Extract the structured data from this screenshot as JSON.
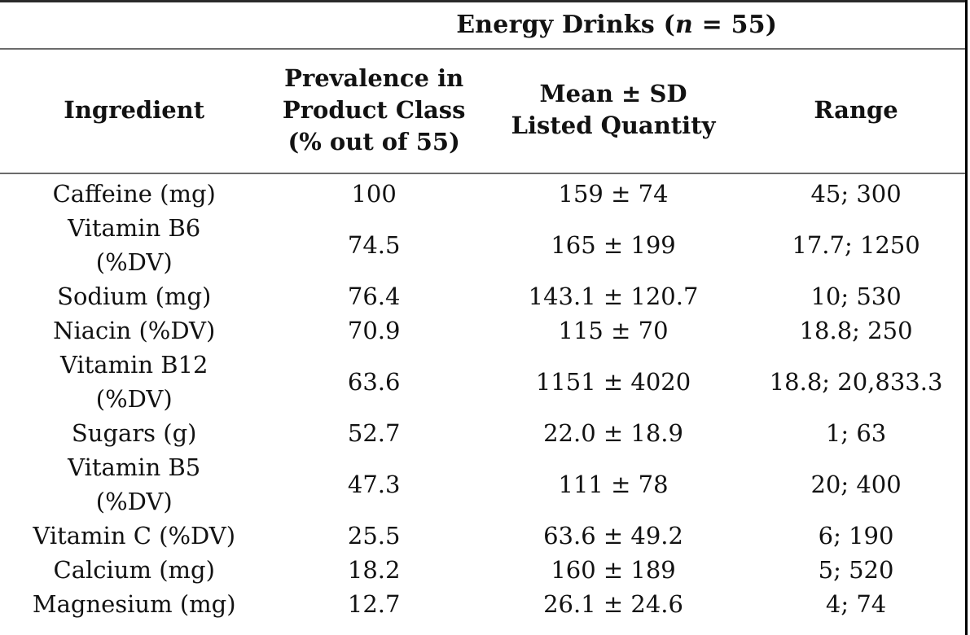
{
  "table": {
    "group_header": {
      "prefix": "Energy Drinks (",
      "n": "n",
      "suffix": " = 55)"
    },
    "columns": {
      "ingredient": "Ingredient",
      "prevalence": "Prevalence in\nProduct Class\n(% out of 55)",
      "mean_sd": "Mean ± SD\nListed Quantity",
      "range": "Range"
    },
    "rows": [
      {
        "ingredient": "Caffeine (mg)",
        "prevalence": "100",
        "mean_sd": "159 ± 74",
        "range": "45; 300"
      },
      {
        "ingredient": "Vitamin B6\n(%DV)",
        "prevalence": "74.5",
        "mean_sd": "165 ± 199",
        "range": "17.7; 1250"
      },
      {
        "ingredient": "Sodium (mg)",
        "prevalence": "76.4",
        "mean_sd": "143.1 ± 120.7",
        "range": "10; 530"
      },
      {
        "ingredient": "Niacin (%DV)",
        "prevalence": "70.9",
        "mean_sd": "115 ± 70",
        "range": "18.8; 250"
      },
      {
        "ingredient": "Vitamin B12\n(%DV)",
        "prevalence": "63.6",
        "mean_sd": "1151 ± 4020",
        "range": "18.8; 20,833.3"
      },
      {
        "ingredient": "Sugars (g)",
        "prevalence": "52.7",
        "mean_sd": "22.0 ± 18.9",
        "range": "1; 63"
      },
      {
        "ingredient": "Vitamin B5\n(%DV)",
        "prevalence": "47.3",
        "mean_sd": "111 ± 78",
        "range": "20; 400"
      },
      {
        "ingredient": "Vitamin C (%DV)",
        "prevalence": "25.5",
        "mean_sd": "63.6 ± 49.2",
        "range": "6; 190"
      },
      {
        "ingredient": "Calcium (mg)",
        "prevalence": "18.2",
        "mean_sd": "160 ± 189",
        "range": "5; 520"
      },
      {
        "ingredient": "Magnesium (mg)",
        "prevalence": "12.7",
        "mean_sd": "26.1 ± 24.6",
        "range": "4; 74"
      }
    ],
    "sample_size": "55"
  },
  "colors": {
    "text": "#121212",
    "rule_gray": "#6b6b6b",
    "top_rule": "#2a2a2a",
    "page_edge": "#000000",
    "background": "#ffffff"
  }
}
